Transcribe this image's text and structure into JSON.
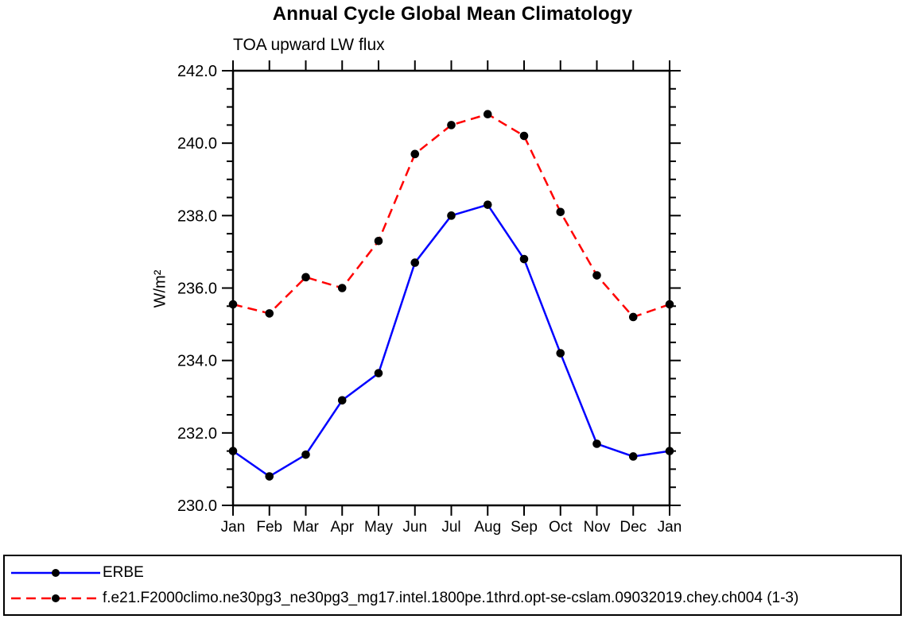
{
  "chart_data": {
    "type": "line",
    "title": "Annual Cycle Global Mean Climatology",
    "subtitle": "TOA upward LW flux",
    "xlabel": "",
    "ylabel": "W/m²",
    "categories": [
      "Jan",
      "Feb",
      "Mar",
      "Apr",
      "May",
      "Jun",
      "Jul",
      "Aug",
      "Sep",
      "Oct",
      "Nov",
      "Dec",
      "Jan"
    ],
    "ylim": [
      230.0,
      242.0
    ],
    "ytick_major_step": 2.0,
    "ytick_minor_step": 0.5,
    "ytick_labels": [
      "230.0",
      "232.0",
      "234.0",
      "236.0",
      "238.0",
      "240.0",
      "242.0"
    ],
    "grid": false,
    "legend_position": "bottom",
    "axis_color": "#000000",
    "marker_color": "#000000",
    "series": [
      {
        "name": "ERBE",
        "color": "#0000ff",
        "style": "solid",
        "marker": "circle",
        "values": [
          231.5,
          230.8,
          231.4,
          232.9,
          233.65,
          236.7,
          238.0,
          238.3,
          236.8,
          234.2,
          231.7,
          231.35,
          231.5
        ]
      },
      {
        "name": "f.e21.F2000climo.ne30pg3_ne30pg3_mg17.intel.1800pe.1thrd.opt-se-cslam.09032019.chey.ch004 (1-3)",
        "color": "#ff0000",
        "style": "dashed",
        "marker": "circle",
        "values": [
          235.55,
          235.3,
          236.3,
          236.0,
          237.3,
          239.7,
          240.5,
          240.8,
          240.2,
          238.1,
          236.35,
          235.2,
          235.55
        ]
      }
    ]
  }
}
